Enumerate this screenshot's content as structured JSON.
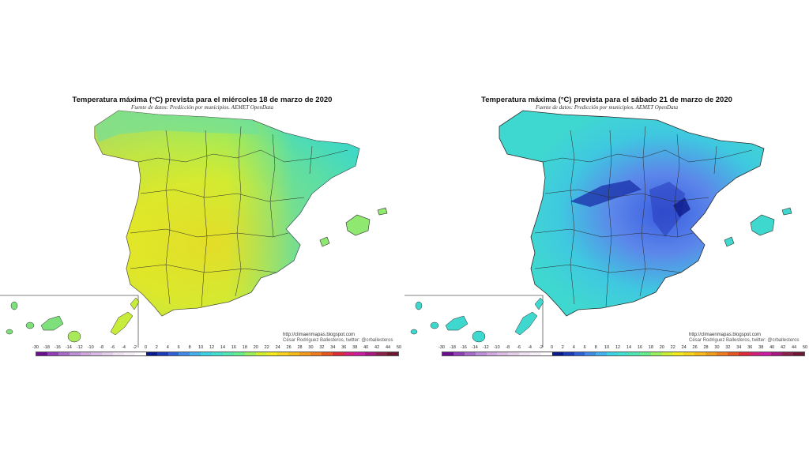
{
  "panels": [
    {
      "title": "Temperatura máxima (°C) prevista para el miércoles 18 de marzo de 2020",
      "subtitle": "Fuente de datos: Predicción por municipios. AEMET OpenData",
      "credit_url": "http://climaenmapas.blogspot.com",
      "credit_author": "César Rodríguez Ballesteros, twitter: @crballesteros"
    },
    {
      "title": "Temperatura máxima (°C) prevista para el sábado 21 de marzo de 2020",
      "subtitle": "Fuente de datos: Predicción por municipios. AEMET OpenData",
      "credit_url": "http://climaenmapas.blogspot.com",
      "credit_author": "César Rodríguez Ballesteros, twitter: @crballesteros"
    }
  ],
  "legend": {
    "ticks": [
      "-30",
      "-18",
      "-16",
      "-14",
      "-12",
      "-10",
      "-8",
      "-6",
      "-4",
      "-2",
      "0",
      "2",
      "4",
      "6",
      "8",
      "10",
      "12",
      "14",
      "16",
      "18",
      "20",
      "22",
      "24",
      "26",
      "28",
      "30",
      "32",
      "34",
      "36",
      "38",
      "40",
      "42",
      "44",
      "50"
    ],
    "colors": [
      "#6a0d8f",
      "#8e3fb8",
      "#a66ac8",
      "#bd8fd6",
      "#cfa9de",
      "#d9bce3",
      "#e4cfe9",
      "#efe2f1",
      "#f7f0f8",
      "#ffffff",
      "#0b1a8a",
      "#1a3bb8",
      "#2e63d8",
      "#3f8ae6",
      "#42b0ef",
      "#3cd2e6",
      "#3fe0cf",
      "#4fe8b3",
      "#62ef8c",
      "#9af05a",
      "#cdef2e",
      "#f2ea1a",
      "#f8d21a",
      "#f8b818",
      "#f49a1a",
      "#ee7a1e",
      "#e5551f",
      "#dd2a3a",
      "#d41f78",
      "#c91b9e",
      "#a8177f",
      "#8a1f4a",
      "#6e1730"
    ]
  },
  "colors": {
    "left_land": "#c9e83a",
    "right_land": "#3fd8d6",
    "border_lines": "#2a2a2a"
  }
}
